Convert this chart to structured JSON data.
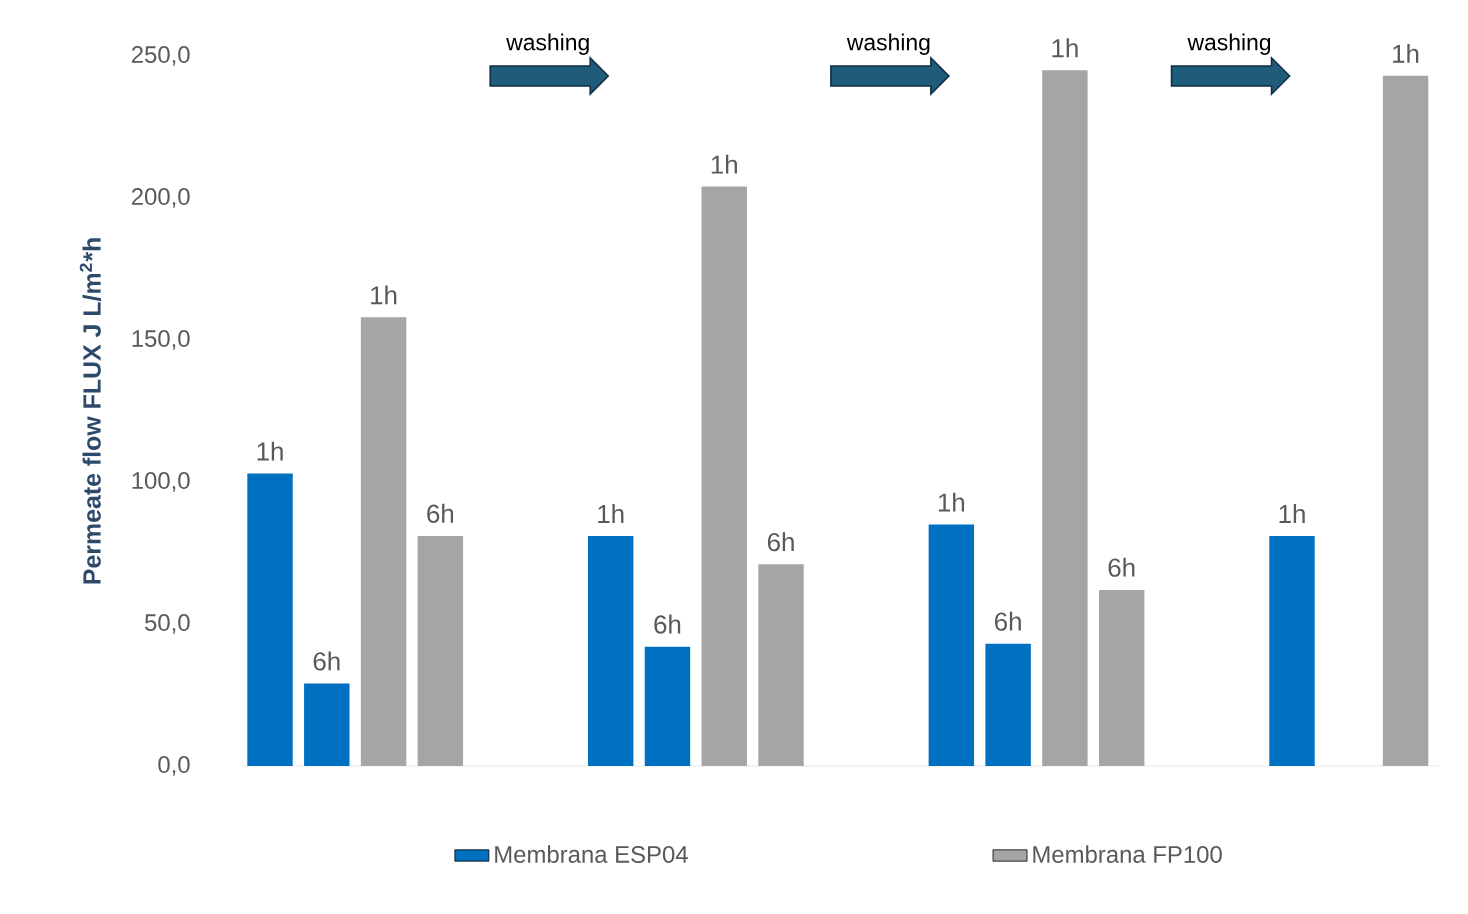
{
  "chart_data": {
    "type": "bar",
    "ylabel": "Permeate flow FLUX  J L/m$^{2}$*h",
    "categories": [
      null,
      null,
      null,
      null,
      null,
      null,
      null,
      null,
      null,
      null,
      null,
      null,
      null,
      null,
      null,
      null,
      null,
      null,
      null,
      null,
      null
    ],
    "series": [
      {
        "name": "Membrana ESP04",
        "color": "#0070c0",
        "values": [
          103,
          29,
          null,
          null,
          null,
          null,
          81,
          42,
          null,
          null,
          null,
          null,
          85,
          43,
          null,
          null,
          null,
          null,
          81,
          null,
          null
        ]
      },
      {
        "name": "Membrana FP100",
        "color": "#a5a5a5",
        "values": [
          null,
          null,
          158,
          81,
          null,
          null,
          null,
          null,
          204,
          71,
          null,
          null,
          null,
          null,
          245,
          62,
          null,
          null,
          null,
          null,
          243
        ]
      }
    ],
    "ylim": [
      0,
      250
    ],
    "yticks": [
      {
        "value": 0,
        "label": "0,0"
      },
      {
        "value": 50,
        "label": "50,0"
      },
      {
        "value": 100,
        "label": "100,0"
      },
      {
        "value": 150,
        "label": "150,0"
      },
      {
        "value": 200,
        "label": "200,0"
      },
      {
        "value": 250,
        "label": "250,0"
      }
    ],
    "annotations": [
      {
        "text": "1h"
      },
      {
        "text": "6h"
      },
      {
        "text": "1h"
      },
      {
        "text": "6h"
      },
      {
        "text": "1h"
      },
      {
        "text": "6h"
      },
      {
        "text": "1h"
      },
      {
        "text": "6h"
      },
      {
        "text": "1h"
      },
      {
        "text": "6h"
      },
      {
        "text": "1h"
      },
      {
        "text": "6h"
      },
      {
        "text": "1h"
      },
      {
        "text": "1h"
      },
      "washing",
      "washing",
      "washing"
    ],
    "legend": "bottom"
  }
}
